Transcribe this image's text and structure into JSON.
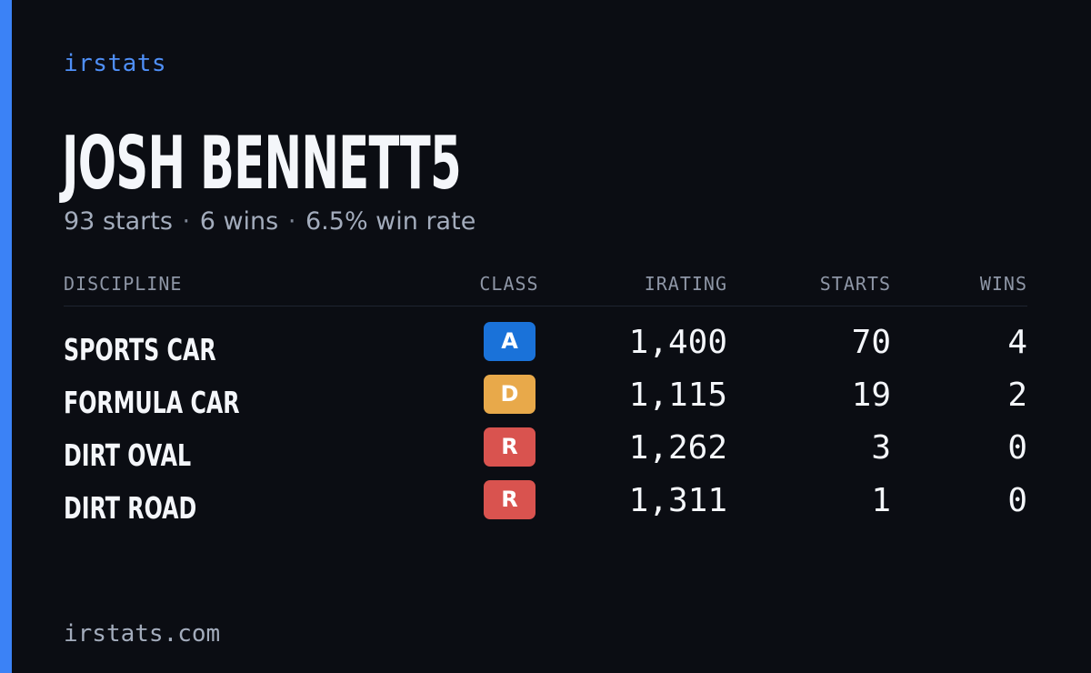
{
  "brand": "irstats",
  "driver": {
    "name": "JOSH BENNETT5"
  },
  "summary": {
    "starts": "93 starts",
    "wins": "6 wins",
    "win_rate": "6.5% win rate",
    "separator": "·"
  },
  "table": {
    "headers": {
      "discipline": "DISCIPLINE",
      "class": "CLASS",
      "irating": "IRATING",
      "starts": "STARTS",
      "wins": "WINS"
    },
    "rows": [
      {
        "discipline": "SPORTS CAR",
        "class": "A",
        "class_color": "#1a72d9",
        "irating": "1,400",
        "starts": "70",
        "wins": "4"
      },
      {
        "discipline": "FORMULA CAR",
        "class": "D",
        "class_color": "#e8a94a",
        "irating": "1,115",
        "starts": "19",
        "wins": "2"
      },
      {
        "discipline": "DIRT OVAL",
        "class": "R",
        "class_color": "#d9534f",
        "irating": "1,262",
        "starts": "3",
        "wins": "0"
      },
      {
        "discipline": "DIRT ROAD",
        "class": "R",
        "class_color": "#d9534f",
        "irating": "1,311",
        "starts": "1",
        "wins": "0"
      }
    ]
  },
  "footer": {
    "url": "irstats.com"
  },
  "colors": {
    "background": "#0b0d13",
    "accent": "#3b82f6",
    "brand_text": "#4f8ff7",
    "muted_text": "#a3acbc"
  }
}
